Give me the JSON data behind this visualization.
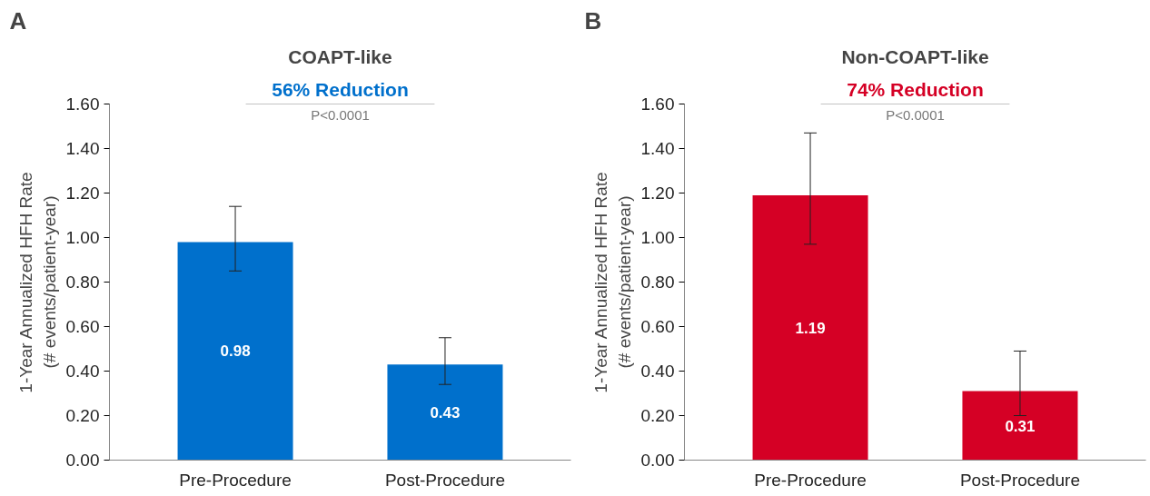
{
  "chart_data": [
    {
      "type": "bar",
      "title": "COAPT-like",
      "ylabel": "1-Year Annualized HFH Rate\n(# events/patient-year)",
      "categories": [
        "Pre-Procedure",
        "Post-Procedure"
      ],
      "values": [
        0.98,
        0.43
      ],
      "color": "#0070cc",
      "errors": [
        [
          0.85,
          1.14
        ],
        [
          0.34,
          0.55
        ]
      ],
      "data_labels": true,
      "ylim": [
        0,
        1.6
      ],
      "yticks": [
        {
          "value": 0,
          "label": "0.00"
        },
        {
          "value": 0.2,
          "label": "0.20"
        },
        {
          "value": 0.4,
          "label": "0.40"
        },
        {
          "value": 0.6,
          "label": "0.60"
        },
        {
          "value": 0.8,
          "label": "0.80"
        },
        {
          "value": 1.0,
          "label": "1.00"
        },
        {
          "value": 1.2,
          "label": "1.20"
        },
        {
          "value": 1.4,
          "label": "1.40"
        },
        {
          "value": 1.6,
          "label": "1.60"
        }
      ],
      "grid": false,
      "annotations": [
        "A",
        "56% Reduction",
        "P<0.0001"
      ]
    },
    {
      "type": "bar",
      "title": "Non-COAPT-like",
      "ylabel": "1-Year Annualized HFH Rate\n(# events/patient-year)",
      "categories": [
        "Pre-Procedure",
        "Post-Procedure"
      ],
      "values": [
        1.19,
        0.31
      ],
      "color": "#d50025",
      "errors": [
        [
          0.97,
          1.47
        ],
        [
          0.2,
          0.49
        ]
      ],
      "data_labels": true,
      "ylim": [
        0,
        1.6
      ],
      "yticks": [
        {
          "value": 0,
          "label": "0.00"
        },
        {
          "value": 0.2,
          "label": "0.20"
        },
        {
          "value": 0.4,
          "label": "0.40"
        },
        {
          "value": 0.6,
          "label": "0.60"
        },
        {
          "value": 0.8,
          "label": "0.80"
        },
        {
          "value": 1.0,
          "label": "1.00"
        },
        {
          "value": 1.2,
          "label": "1.20"
        },
        {
          "value": 1.4,
          "label": "1.40"
        },
        {
          "value": 1.6,
          "label": "1.60"
        }
      ],
      "grid": false,
      "annotations": [
        "B",
        "74% Reduction",
        "P<0.0001"
      ]
    }
  ]
}
